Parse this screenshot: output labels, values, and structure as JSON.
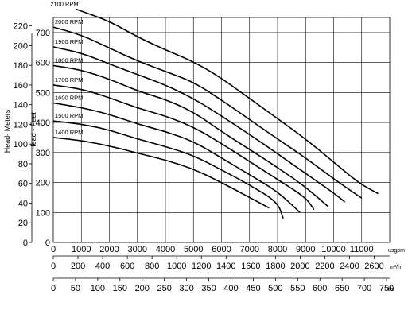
{
  "chart_data": {
    "type": "line",
    "x_axes": [
      {
        "unit": "usgpm",
        "ticks": [
          0,
          1000,
          2000,
          3000,
          4000,
          5000,
          6000,
          7000,
          8000,
          9000,
          10000,
          11000
        ]
      },
      {
        "unit": "m³/h",
        "ticks": [
          0,
          200,
          400,
          600,
          800,
          1000,
          1200,
          1400,
          1600,
          1800,
          2000,
          2200,
          2400,
          2600
        ]
      },
      {
        "unit": "l/s",
        "ticks": [
          0,
          50,
          100,
          150,
          200,
          250,
          300,
          350,
          400,
          450,
          500,
          550,
          600,
          650,
          700,
          750
        ]
      }
    ],
    "y_axes": [
      {
        "label": "Head- Meters",
        "ticks": [
          0,
          20,
          40,
          60,
          80,
          100,
          120,
          140,
          160,
          180,
          200,
          220
        ]
      },
      {
        "label": "Head - Feet",
        "ticks": [
          0,
          100,
          200,
          300,
          400,
          500,
          600,
          700
        ]
      }
    ],
    "xlim": [
      0,
      12000
    ],
    "ylim_feet": [
      0,
      750
    ],
    "grid": true,
    "series": [
      {
        "name": "2100 RPM",
        "x": [
          800,
          2000,
          3000,
          4000,
          5000,
          6000,
          7000,
          8000,
          9000,
          10000,
          10900,
          11600
        ],
        "y": [
          778,
          738,
          685,
          642,
          603,
          548,
          480,
          413,
          345,
          268,
          198,
          162
        ]
      },
      {
        "name": "2000 RPM",
        "x": [
          0,
          1000,
          2000,
          3000,
          4000,
          5000,
          6000,
          7000,
          8000,
          9000,
          10000,
          11000
        ],
        "y": [
          718,
          692,
          648,
          605,
          570,
          535,
          475,
          410,
          345,
          282,
          212,
          148
        ]
      },
      {
        "name": "1900 RPM",
        "x": [
          0,
          1000,
          2000,
          3000,
          4000,
          5000,
          6000,
          7000,
          8000,
          9000,
          10000,
          10400
        ],
        "y": [
          652,
          632,
          595,
          560,
          525,
          480,
          422,
          360,
          296,
          230,
          165,
          135
        ]
      },
      {
        "name": "1800 RPM",
        "x": [
          0,
          1000,
          2000,
          3000,
          4000,
          5000,
          6000,
          7000,
          8000,
          9000,
          9800
        ],
        "y": [
          590,
          575,
          545,
          505,
          477,
          435,
          370,
          310,
          250,
          185,
          120
        ]
      },
      {
        "name": "1700 RPM",
        "x": [
          0,
          1000,
          2000,
          3000,
          4000,
          5000,
          6000,
          7000,
          8000,
          9000,
          9300
        ],
        "y": [
          525,
          512,
          483,
          448,
          422,
          385,
          330,
          270,
          210,
          150,
          110
        ]
      },
      {
        "name": "1600 RPM",
        "x": [
          0,
          1000,
          2000,
          3000,
          4000,
          5000,
          6000,
          7000,
          8000,
          8800
        ],
        "y": [
          465,
          450,
          427,
          395,
          370,
          337,
          282,
          226,
          170,
          100
        ]
      },
      {
        "name": "1500 RPM",
        "x": [
          0,
          1000,
          2000,
          3000,
          4000,
          5000,
          6000,
          7000,
          8000,
          8200
        ],
        "y": [
          405,
          395,
          375,
          345,
          320,
          290,
          242,
          192,
          135,
          80
        ]
      },
      {
        "name": "1400 RPM",
        "x": [
          0,
          1000,
          2000,
          3000,
          4000,
          5000,
          6000,
          7000,
          7700
        ],
        "y": [
          350,
          340,
          322,
          298,
          275,
          245,
          200,
          150,
          115
        ]
      }
    ]
  }
}
